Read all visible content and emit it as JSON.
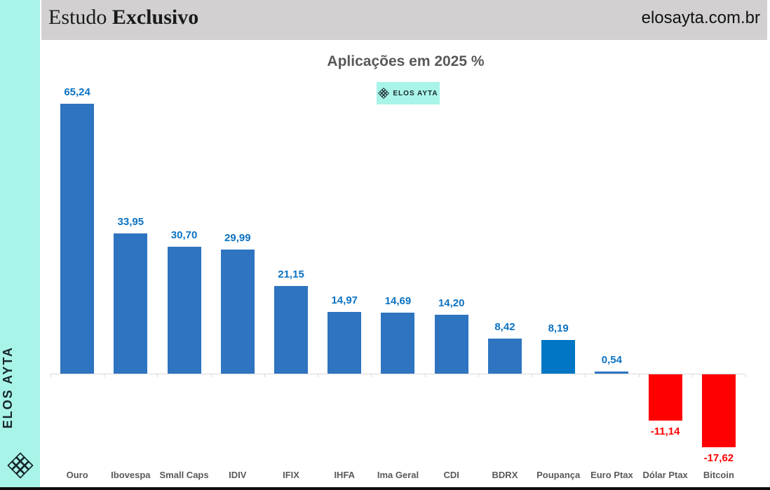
{
  "sidebar": {
    "brand": "ELOS AYTA",
    "logo_icon": "elos-lattice-icon",
    "background": "#A9F4E8"
  },
  "header": {
    "title_regular": "Estudo",
    "title_bold": "Exclusivo",
    "site": "elosayta.com.br",
    "background": "#D2D0D1"
  },
  "badge": {
    "label": "ELOS AYTA",
    "icon": "elos-lattice-icon",
    "background": "#A9F4E8"
  },
  "chart_data": {
    "type": "bar",
    "title": "Aplicações em 2025 %",
    "categories": [
      "Ouro",
      "Ibovespa",
      "Small Caps",
      "IDIV",
      "IFIX",
      "IHFA",
      "Ima Geral",
      "CDI",
      "BDRX",
      "Poupança",
      "Euro Ptax",
      "Dólar Ptax",
      "Bitcoin"
    ],
    "values": [
      65.24,
      33.95,
      30.7,
      29.99,
      21.15,
      14.97,
      14.69,
      14.2,
      8.42,
      8.19,
      0.54,
      -11.14,
      -17.62
    ],
    "value_labels": [
      "65,24",
      "33,95",
      "30,70",
      "29,99",
      "21,15",
      "14,97",
      "14,69",
      "14,20",
      "8,42",
      "8,19",
      "0,54",
      "-11,14",
      "-17,62"
    ],
    "bar_colors": [
      "#2E74C0",
      "#2E74C0",
      "#2E74C0",
      "#2E74C0",
      "#2E74C0",
      "#2E74C0",
      "#2E74C0",
      "#2E74C0",
      "#2E74C0",
      "#0076C4",
      "#2E74C0",
      "#FF0000",
      "#FF0000"
    ],
    "label_color_positive": "#0B72C2",
    "label_color_negative": "#FF0000",
    "xlabel": "",
    "ylabel": "",
    "ylim": [
      -20,
      70
    ],
    "grid": false,
    "legend": null,
    "axis_line_color": "#D9D9D9",
    "decimal_style": "comma"
  }
}
